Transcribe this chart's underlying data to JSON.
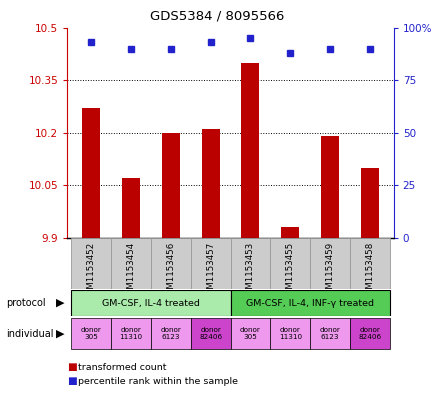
{
  "title": "GDS5384 / 8095566",
  "samples": [
    "GSM1153452",
    "GSM1153454",
    "GSM1153456",
    "GSM1153457",
    "GSM1153453",
    "GSM1153455",
    "GSM1153459",
    "GSM1153458"
  ],
  "bar_values": [
    10.27,
    10.07,
    10.2,
    10.21,
    10.4,
    9.93,
    10.19,
    10.1
  ],
  "percentile_values": [
    93,
    90,
    90,
    93,
    95,
    88,
    90,
    90
  ],
  "ylim_left": [
    9.9,
    10.5
  ],
  "ylim_right": [
    0,
    100
  ],
  "yticks_left": [
    9.9,
    10.05,
    10.2,
    10.35,
    10.5
  ],
  "ytick_labels_left": [
    "9.9",
    "10.05",
    "10.2",
    "10.35",
    "10.5"
  ],
  "yticks_right": [
    0,
    25,
    50,
    75,
    100
  ],
  "ytick_labels_right": [
    "0",
    "25",
    "50",
    "75",
    "100%"
  ],
  "bar_color": "#bb0000",
  "dot_color": "#2222cc",
  "protocol_groups": [
    {
      "label": "GM-CSF, IL-4 treated",
      "indices": [
        0,
        1,
        2,
        3
      ],
      "color": "#aaeaaa"
    },
    {
      "label": "GM-CSF, IL-4, INF-γ treated",
      "indices": [
        4,
        5,
        6,
        7
      ],
      "color": "#55cc55"
    }
  ],
  "individual_donors": [
    {
      "label": "donor\n305",
      "color": "#ee99ee"
    },
    {
      "label": "donor\n11310",
      "color": "#ee99ee"
    },
    {
      "label": "donor\n6123",
      "color": "#ee99ee"
    },
    {
      "label": "donor\n82406",
      "color": "#cc44cc"
    },
    {
      "label": "donor\n305",
      "color": "#ee99ee"
    },
    {
      "label": "donor\n11310",
      "color": "#ee99ee"
    },
    {
      "label": "donor\n6123",
      "color": "#ee99ee"
    },
    {
      "label": "donor\n82406",
      "color": "#cc44cc"
    }
  ],
  "tick_color_left": "#cc0000",
  "tick_color_right": "#2222cc",
  "sample_bg": "#cccccc",
  "sample_edge": "#999999"
}
